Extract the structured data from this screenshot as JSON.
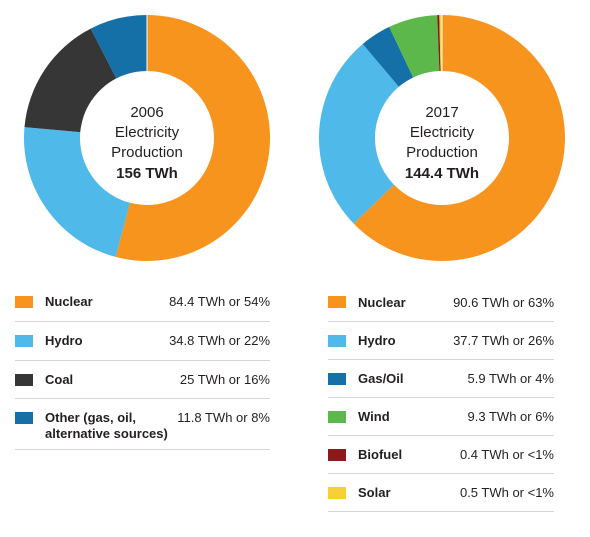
{
  "chart_data": [
    {
      "type": "pie",
      "center": {
        "year": "2006",
        "line1": "Electricity",
        "line2": "Production",
        "total": "156 TWh"
      },
      "slices": [
        {
          "label": "Nuclear",
          "value": 84.4,
          "value_text": "84.4 TWh or 54%",
          "color": "#f7941d"
        },
        {
          "label": "Hydro",
          "value": 34.8,
          "value_text": "34.8 TWh or 22%",
          "color": "#4fb9ea"
        },
        {
          "label": "Coal",
          "value": 25,
          "value_text": "25 TWh or 16%",
          "color": "#363636"
        },
        {
          "label_line1": "Other (gas, oil,",
          "label_line2": "alternative sources)",
          "value": 11.8,
          "value_text": "11.8 TWh or 8%",
          "color": "#1570a8"
        }
      ]
    },
    {
      "type": "pie",
      "center": {
        "year": "2017",
        "line1": "Electricity",
        "line2": "Production",
        "total": "144.4 TWh"
      },
      "slices": [
        {
          "label": "Nuclear",
          "value": 90.6,
          "value_text": "90.6 TWh or 63%",
          "color": "#f7941d"
        },
        {
          "label": "Hydro",
          "value": 37.7,
          "value_text": "37.7 TWh or 26%",
          "color": "#4fb9ea"
        },
        {
          "label": "Gas/Oil",
          "value": 5.9,
          "value_text": "5.9 TWh or 4%",
          "color": "#1570a8"
        },
        {
          "label": "Wind",
          "value": 9.3,
          "value_text": "9.3 TWh or 6%",
          "color": "#5cb84a"
        },
        {
          "label": "Biofuel",
          "value": 0.4,
          "value_text": "0.4 TWh or <1%",
          "color": "#8b1a1a"
        },
        {
          "label": "Solar",
          "value": 0.5,
          "value_text": "0.5 TWh or <1%",
          "color": "#f7d038"
        }
      ]
    }
  ]
}
